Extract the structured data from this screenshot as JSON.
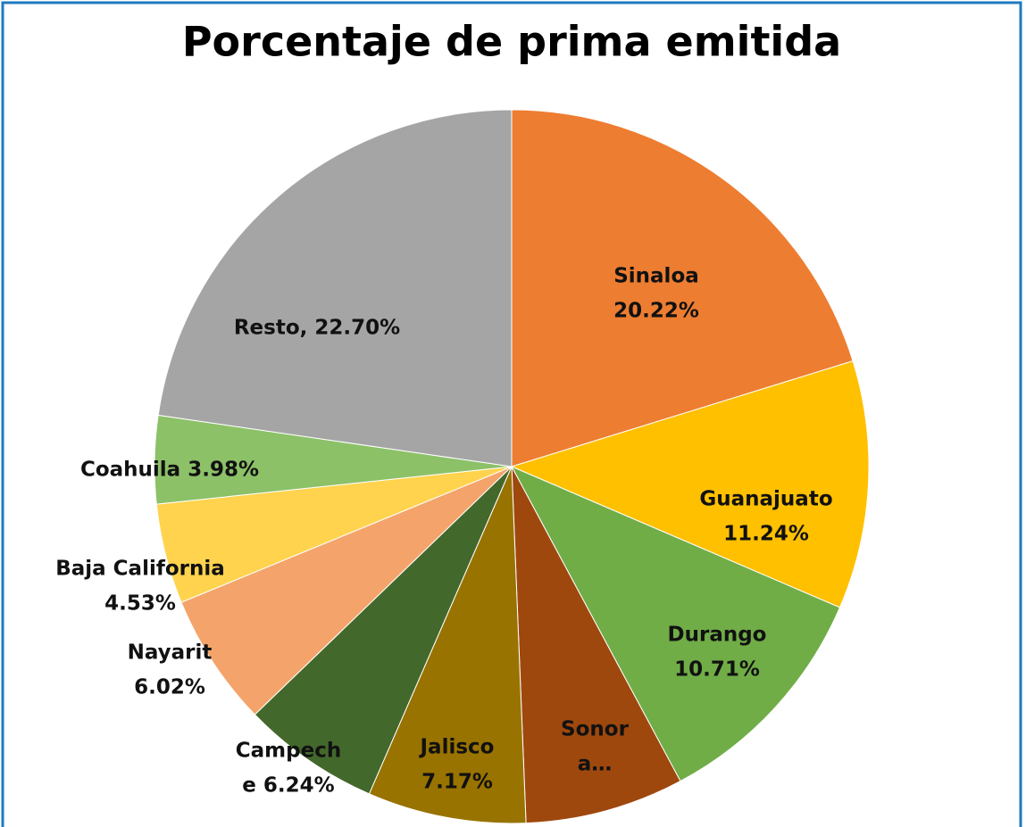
{
  "chart_data": {
    "type": "pie",
    "title": "Porcentaje de prima emitida",
    "values": [
      20.22,
      11.24,
      10.71,
      7.19,
      7.17,
      6.24,
      6.02,
      4.53,
      3.98,
      22.7
    ],
    "value_labels": [
      [
        "Sinaloa",
        "20.22%"
      ],
      [
        "Guanajuato",
        "11.24%"
      ],
      [
        "Durango",
        "10.71%"
      ],
      [
        "Sonor",
        "a…"
      ],
      [
        "Jalisco",
        "7.17%"
      ],
      [
        "Campech",
        "e 6.24%"
      ],
      [
        "Nayarit",
        "6.02%"
      ],
      [
        "Baja California",
        "4.53%"
      ],
      [
        "Coahuila 3.98%"
      ],
      [
        "Resto, 22.70%"
      ]
    ],
    "colors": [
      "#ED7D31",
      "#FFC000",
      "#70AD47",
      "#9E480E",
      "#997300",
      "#43682B",
      "#F4A46A",
      "#FFD34D",
      "#8CC168",
      "#A5A5A5"
    ]
  }
}
